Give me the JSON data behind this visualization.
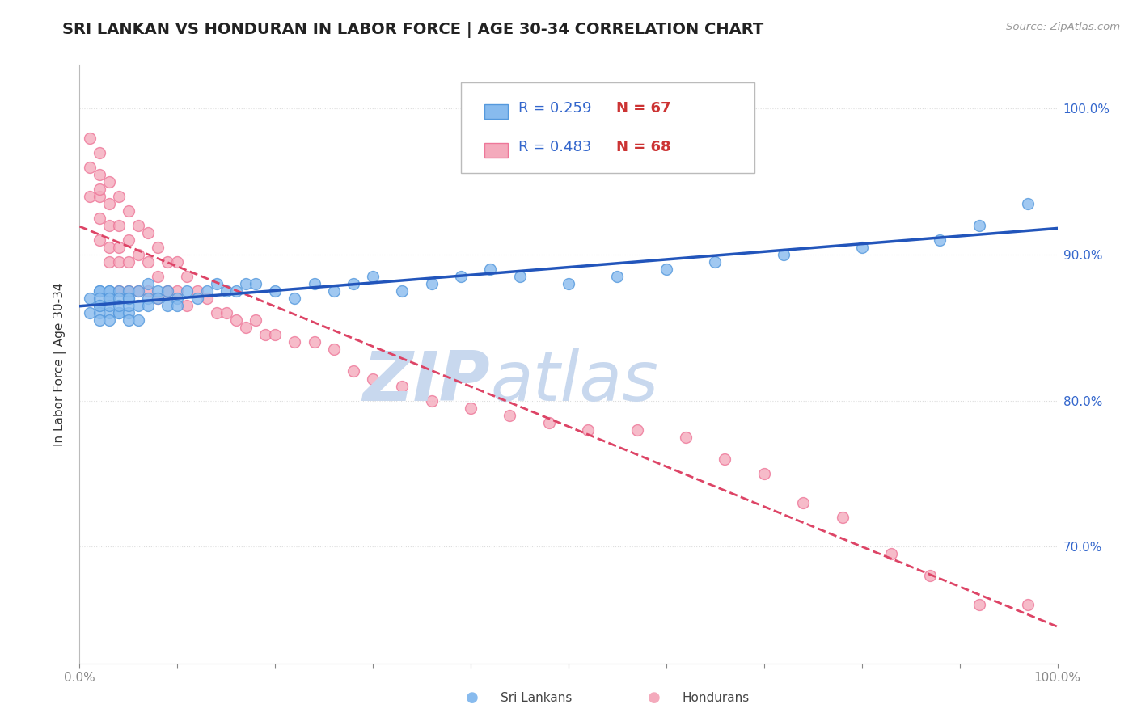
{
  "title": "SRI LANKAN VS HONDURAN IN LABOR FORCE | AGE 30-34 CORRELATION CHART",
  "source_text": "Source: ZipAtlas.com",
  "ylabel": "In Labor Force | Age 30-34",
  "sri_lankan_color": "#88bbee",
  "honduran_color": "#f4aabc",
  "sri_lankan_edge": "#5599dd",
  "honduran_edge": "#ee7799",
  "blue_line_color": "#2255bb",
  "pink_line_color": "#dd4466",
  "watermark_zip": "ZIP",
  "watermark_atlas": "atlas",
  "watermark_color": "#c8d8ee",
  "background_color": "#ffffff",
  "grid_color": "#dddddd",
  "title_color": "#222222",
  "right_tick_color": "#3366cc",
  "r_value_color": "#3366cc",
  "n_value_color": "#cc3333",
  "xlim": [
    0.0,
    1.0
  ],
  "ylim": [
    0.62,
    1.03
  ],
  "r_sri": 0.259,
  "n_sri": 67,
  "r_hon": 0.483,
  "n_hon": 68,
  "sri_lankans_x": [
    0.01,
    0.01,
    0.02,
    0.02,
    0.02,
    0.02,
    0.02,
    0.02,
    0.02,
    0.03,
    0.03,
    0.03,
    0.03,
    0.03,
    0.03,
    0.03,
    0.04,
    0.04,
    0.04,
    0.04,
    0.04,
    0.05,
    0.05,
    0.05,
    0.05,
    0.05,
    0.05,
    0.06,
    0.06,
    0.06,
    0.07,
    0.07,
    0.07,
    0.08,
    0.08,
    0.09,
    0.09,
    0.1,
    0.1,
    0.11,
    0.12,
    0.13,
    0.14,
    0.15,
    0.16,
    0.17,
    0.18,
    0.2,
    0.22,
    0.24,
    0.26,
    0.28,
    0.3,
    0.33,
    0.36,
    0.39,
    0.42,
    0.45,
    0.5,
    0.55,
    0.6,
    0.65,
    0.72,
    0.8,
    0.88,
    0.92,
    0.97
  ],
  "sri_lankans_y": [
    0.86,
    0.87,
    0.865,
    0.875,
    0.86,
    0.875,
    0.855,
    0.87,
    0.865,
    0.87,
    0.875,
    0.86,
    0.875,
    0.865,
    0.855,
    0.87,
    0.86,
    0.875,
    0.87,
    0.86,
    0.865,
    0.87,
    0.875,
    0.86,
    0.865,
    0.855,
    0.87,
    0.875,
    0.865,
    0.855,
    0.87,
    0.865,
    0.88,
    0.875,
    0.87,
    0.865,
    0.875,
    0.87,
    0.865,
    0.875,
    0.87,
    0.875,
    0.88,
    0.875,
    0.875,
    0.88,
    0.88,
    0.875,
    0.87,
    0.88,
    0.875,
    0.88,
    0.885,
    0.875,
    0.88,
    0.885,
    0.89,
    0.885,
    0.88,
    0.885,
    0.89,
    0.895,
    0.9,
    0.905,
    0.91,
    0.92,
    0.935
  ],
  "hondurans_x": [
    0.01,
    0.01,
    0.01,
    0.02,
    0.02,
    0.02,
    0.02,
    0.02,
    0.02,
    0.03,
    0.03,
    0.03,
    0.03,
    0.03,
    0.04,
    0.04,
    0.04,
    0.04,
    0.04,
    0.05,
    0.05,
    0.05,
    0.05,
    0.06,
    0.06,
    0.06,
    0.07,
    0.07,
    0.07,
    0.08,
    0.08,
    0.08,
    0.09,
    0.09,
    0.1,
    0.1,
    0.11,
    0.11,
    0.12,
    0.13,
    0.14,
    0.15,
    0.16,
    0.17,
    0.18,
    0.19,
    0.2,
    0.22,
    0.24,
    0.26,
    0.28,
    0.3,
    0.33,
    0.36,
    0.4,
    0.44,
    0.48,
    0.52,
    0.57,
    0.62,
    0.66,
    0.7,
    0.74,
    0.78,
    0.83,
    0.87,
    0.92,
    0.97
  ],
  "hondurans_y": [
    0.98,
    0.94,
    0.96,
    0.97,
    0.955,
    0.94,
    0.945,
    0.925,
    0.91,
    0.95,
    0.935,
    0.92,
    0.905,
    0.895,
    0.94,
    0.92,
    0.905,
    0.895,
    0.875,
    0.93,
    0.91,
    0.895,
    0.875,
    0.92,
    0.9,
    0.875,
    0.915,
    0.895,
    0.875,
    0.905,
    0.885,
    0.87,
    0.895,
    0.875,
    0.895,
    0.875,
    0.885,
    0.865,
    0.875,
    0.87,
    0.86,
    0.86,
    0.855,
    0.85,
    0.855,
    0.845,
    0.845,
    0.84,
    0.84,
    0.835,
    0.82,
    0.815,
    0.81,
    0.8,
    0.795,
    0.79,
    0.785,
    0.78,
    0.78,
    0.775,
    0.76,
    0.75,
    0.73,
    0.72,
    0.695,
    0.68,
    0.66,
    0.66
  ]
}
